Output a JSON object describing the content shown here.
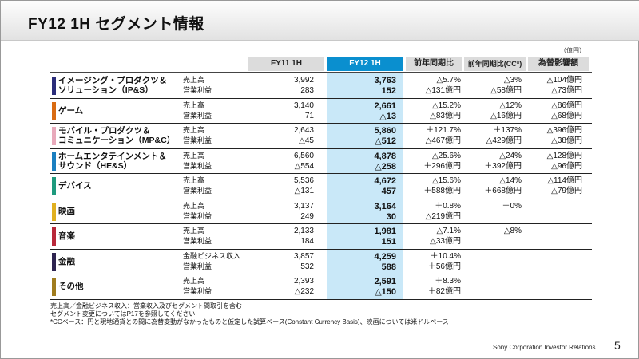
{
  "title": "FY12  1H  セグメント情報",
  "unit": "（億円）",
  "headers": {
    "fy11": "FY11 1H",
    "fy12": "FY12 1H",
    "yoy": "前年同期比",
    "yoy_cc": "前年同期比(CC*)",
    "fx": "為替影響額"
  },
  "rows": [
    {
      "segment": [
        "イメージング・プロダクツ＆",
        "ソリューション（IP&S）"
      ],
      "color": "#2b2d7a",
      "labels": [
        "売上高",
        "営業利益"
      ],
      "fy11": [
        "3,992",
        "283"
      ],
      "fy12": [
        "3,763",
        "152"
      ],
      "yoy": [
        "△5.7%",
        "△131億円"
      ],
      "yoy_cc": [
        "△3%",
        "△58億円"
      ],
      "fx": [
        "△104億円",
        "△73億円"
      ]
    },
    {
      "segment": [
        "ゲーム"
      ],
      "color": "#d96b12",
      "labels": [
        "売上高",
        "営業利益"
      ],
      "fy11": [
        "3,140",
        "71"
      ],
      "fy12": [
        "2,661",
        "△13"
      ],
      "yoy": [
        "△15.2%",
        "△83億円"
      ],
      "yoy_cc": [
        "△12%",
        "△16億円"
      ],
      "fx": [
        "△86億円",
        "△68億円"
      ]
    },
    {
      "segment": [
        "モバイル・プロダクツ＆",
        "コミュニケーション（MP&C）"
      ],
      "color": "#e8a9bb",
      "labels": [
        "売上高",
        "営業利益"
      ],
      "fy11": [
        "2,643",
        "△45"
      ],
      "fy12": [
        "5,860",
        "△512"
      ],
      "yoy": [
        "＋121.7%",
        "△467億円"
      ],
      "yoy_cc": [
        "＋137%",
        "△429億円"
      ],
      "fx": [
        "△396億円",
        "△38億円"
      ]
    },
    {
      "segment": [
        "ホームエンタテインメント＆",
        "サウンド（HE&S）"
      ],
      "color": "#1a7fc0",
      "labels": [
        "売上高",
        "営業利益"
      ],
      "fy11": [
        "6,560",
        "△554"
      ],
      "fy12": [
        "4,878",
        "△258"
      ],
      "yoy": [
        "△25.6%",
        "＋296億円"
      ],
      "yoy_cc": [
        "△24%",
        "＋392億円"
      ],
      "fx": [
        "△128億円",
        "△96億円"
      ]
    },
    {
      "segment": [
        "デバイス"
      ],
      "color": "#1e9a7e",
      "labels": [
        "売上高",
        "営業利益"
      ],
      "fy11": [
        "5,536",
        "△131"
      ],
      "fy12": [
        "4,672",
        "457"
      ],
      "yoy": [
        "△15.6%",
        "＋588億円"
      ],
      "yoy_cc": [
        "△14%",
        "＋668億円"
      ],
      "fx": [
        "△114億円",
        "△79億円"
      ]
    },
    {
      "segment": [
        "映画"
      ],
      "color": "#e0b020",
      "labels": [
        "売上高",
        "営業利益"
      ],
      "fy11": [
        "3,137",
        "249"
      ],
      "fy12": [
        "3,164",
        "30"
      ],
      "yoy": [
        "＋0.8%",
        "△219億円"
      ],
      "yoy_cc": [
        "＋0%",
        ""
      ],
      "fx": [
        "",
        ""
      ]
    },
    {
      "segment": [
        "音楽"
      ],
      "color": "#b8283a",
      "labels": [
        "売上高",
        "営業利益"
      ],
      "fy11": [
        "2,133",
        "184"
      ],
      "fy12": [
        "1,981",
        "151"
      ],
      "yoy": [
        "△7.1%",
        "△33億円"
      ],
      "yoy_cc": [
        "△8%",
        ""
      ],
      "fx": [
        "",
        ""
      ]
    },
    {
      "segment": [
        "金融"
      ],
      "color": "#2e2450",
      "labels": [
        "金融ビジネス収入",
        "営業利益"
      ],
      "fy11": [
        "3,857",
        "532"
      ],
      "fy12": [
        "4,259",
        "588"
      ],
      "yoy": [
        "＋10.4%",
        "＋56億円"
      ],
      "yoy_cc": [
        "",
        ""
      ],
      "fx": [
        "",
        ""
      ]
    },
    {
      "segment": [
        "その他"
      ],
      "color": "#a07c1e",
      "labels": [
        "売上高",
        "営業利益"
      ],
      "fy11": [
        "2,393",
        "△232"
      ],
      "fy12": [
        "2,591",
        "△150"
      ],
      "yoy": [
        "＋8.3%",
        "＋82億円"
      ],
      "yoy_cc": [
        "",
        ""
      ],
      "fx": [
        "",
        ""
      ]
    }
  ],
  "notes": [
    "売上高／金融ビジネス収入：営業収入及びセグメント間取引を含む",
    "セグメント変更についてはP17を参照してください",
    "*CCベース：円と現地通貨との間に為替変動がなかったものと仮定した試算ベース(Constant Currency Basis)、映画については米ドルベース"
  ],
  "footer": "Sony Corporation  Investor Relations",
  "page_number": "5"
}
